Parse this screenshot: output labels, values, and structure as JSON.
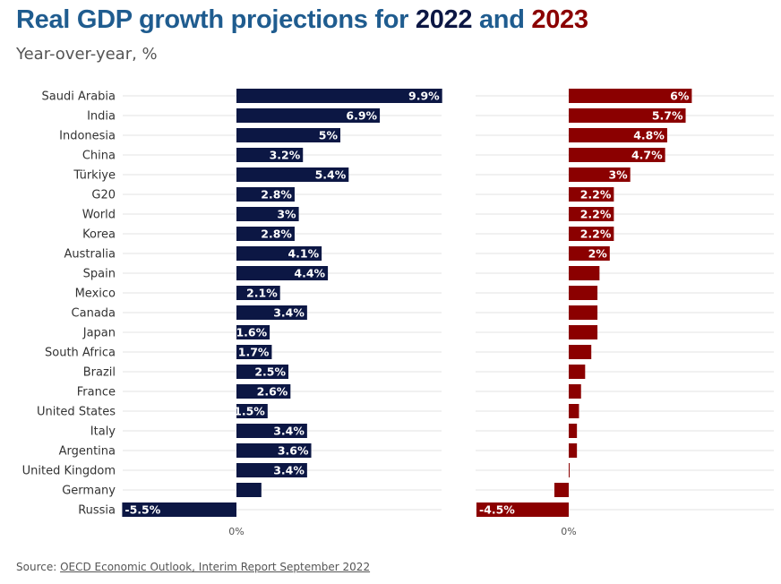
{
  "title": {
    "prefix": "Real GDP growth projections for ",
    "year1": "2022",
    "middle": " and ",
    "year2": "2023"
  },
  "subtitle": "Year-over-year, %",
  "source": {
    "label": "Source: ",
    "link_text": "OECD Economic Outlook, Interim Report September 2022"
  },
  "colors": {
    "series_2022": "#0c1744",
    "series_2023": "#8b0000",
    "title_blue": "#1f5c8f"
  },
  "chart_data": {
    "type": "bar",
    "orientation": "horizontal",
    "title": "Real GDP growth projections for 2022 and 2023",
    "subtitle": "Year-over-year, %",
    "categories": [
      "Saudi Arabia",
      "India",
      "Indonesia",
      "China",
      "Türkiye",
      "G20",
      "World",
      "Korea",
      "Australia",
      "Spain",
      "Mexico",
      "Canada",
      "Japan",
      "South Africa",
      "Brazil",
      "France",
      "United States",
      "Italy",
      "Argentina",
      "United Kingdom",
      "Germany",
      "Russia"
    ],
    "panels": [
      {
        "name": "2022",
        "color": "#0c1744",
        "axis_label": "0%",
        "xlim": [
          -5.5,
          9.9
        ],
        "values": [
          9.9,
          6.9,
          5.0,
          3.2,
          5.4,
          2.8,
          3.0,
          2.8,
          4.1,
          4.4,
          2.1,
          3.4,
          1.6,
          1.7,
          2.5,
          2.6,
          1.5,
          3.4,
          3.6,
          3.4,
          1.2,
          -5.5
        ],
        "labels": [
          "9.9%",
          "6.9%",
          "5%",
          "3.2%",
          "5.4%",
          "2.8%",
          "3%",
          "2.8%",
          "4.1%",
          "4.4%",
          "2.1%",
          "3.4%",
          "1.6%",
          "1.7%",
          "2.5%",
          "2.6%",
          "1.5%",
          "3.4%",
          "3.6%",
          "3.4%",
          "",
          "-5.5%"
        ]
      },
      {
        "name": "2023",
        "color": "#8b0000",
        "axis_label": "0%",
        "xlim": [
          -4.5,
          9.9
        ],
        "values": [
          6.0,
          5.7,
          4.8,
          4.7,
          3.0,
          2.2,
          2.2,
          2.2,
          2.0,
          1.5,
          1.4,
          1.4,
          1.4,
          1.1,
          0.8,
          0.6,
          0.5,
          0.4,
          0.4,
          0.0,
          -0.7,
          -4.5
        ],
        "labels": [
          "6%",
          "5.7%",
          "4.8%",
          "4.7%",
          "3%",
          "2.2%",
          "2.2%",
          "2.2%",
          "2%",
          "",
          "",
          "",
          "",
          "",
          "",
          "",
          "",
          "",
          "",
          "",
          "",
          "-4.5%"
        ]
      }
    ]
  }
}
